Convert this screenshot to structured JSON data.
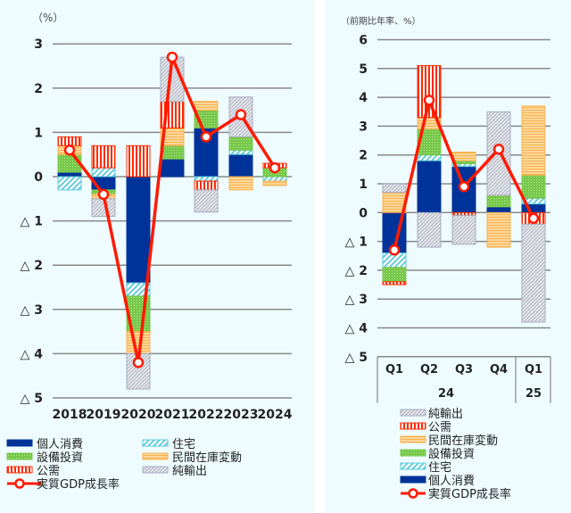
{
  "colors": {
    "個人消費": "#003399",
    "住宅": "#5bc8d8",
    "設備投資": "#77c84a",
    "民間在庫変動": "#f7b24e",
    "公需": "#ff2a00",
    "純輸出": "#b8bcc8",
    "実質GDP成長率": "#ff1a00",
    "background": "#effcff",
    "grid": "#888888"
  },
  "chart_data": [
    {
      "type": "bar",
      "stacked": true,
      "yunit_label": "（%）",
      "ylim": [
        -5,
        3
      ],
      "ytick_values": [
        3,
        2,
        1,
        0,
        -1,
        -2,
        -3,
        -4,
        -5
      ],
      "ytick_labels": [
        "3",
        "2",
        "1",
        "0",
        "△ 1",
        "△ 2",
        "△ 3",
        "△ 4",
        "△ 5"
      ],
      "grid": true,
      "categories": [
        "2018",
        "2019",
        "2020",
        "2021",
        "2022",
        "2023",
        "2024"
      ],
      "series": [
        {
          "name": "個人消費",
          "values": [
            0.1,
            -0.3,
            -2.4,
            0.4,
            1.1,
            0.5,
            0.0
          ]
        },
        {
          "name": "住宅",
          "values": [
            -0.3,
            0.2,
            -0.3,
            0.0,
            -0.1,
            0.1,
            -0.1
          ]
        },
        {
          "name": "設備投資",
          "values": [
            0.4,
            -0.1,
            -0.8,
            0.3,
            0.4,
            0.3,
            0.2
          ]
        },
        {
          "name": "民間在庫変動",
          "values": [
            0.2,
            -0.1,
            -0.5,
            0.4,
            0.2,
            -0.3,
            -0.1
          ]
        },
        {
          "name": "公需",
          "values": [
            0.2,
            0.5,
            0.7,
            0.6,
            -0.2,
            0.0,
            0.1
          ]
        },
        {
          "name": "純輸出",
          "values": [
            0.0,
            -0.4,
            -0.8,
            1.0,
            -0.5,
            0.9,
            0.0
          ]
        }
      ],
      "line": {
        "name": "実質GDP成長率",
        "values": [
          0.6,
          -0.4,
          -4.2,
          2.7,
          0.9,
          1.4,
          0.2
        ]
      },
      "legend": {
        "placement": "bottom",
        "items": [
          "個人消費",
          "住宅",
          "設備投資",
          "民間在庫変動",
          "公需",
          "純輸出",
          "実質GDP成長率"
        ]
      }
    },
    {
      "type": "bar",
      "stacked": true,
      "yunit_label": "（前期比年率、%）",
      "ylim": [
        -5,
        6
      ],
      "ytick_values": [
        6,
        5,
        4,
        3,
        2,
        1,
        0,
        -1,
        -2,
        -3,
        -4,
        -5
      ],
      "ytick_labels": [
        "6",
        "5",
        "4",
        "3",
        "2",
        "1",
        "0",
        "△ 1",
        "△ 2",
        "△ 3",
        "△ 4",
        "△ 5"
      ],
      "grid": true,
      "categories": [
        "Q1",
        "Q2",
        "Q3",
        "Q4",
        "Q1"
      ],
      "category_groups": [
        {
          "label": "24",
          "span": 4
        },
        {
          "label": "25",
          "span": 1
        }
      ],
      "series": [
        {
          "name": "個人消費",
          "values": [
            -1.4,
            1.8,
            1.6,
            0.2,
            0.3
          ]
        },
        {
          "name": "住宅",
          "values": [
            -0.5,
            0.2,
            0.1,
            0.0,
            0.2
          ]
        },
        {
          "name": "設備投資",
          "values": [
            -0.5,
            0.9,
            0.1,
            0.4,
            0.8
          ]
        },
        {
          "name": "民間在庫変動",
          "values": [
            0.7,
            0.4,
            0.3,
            -1.2,
            2.4
          ]
        },
        {
          "name": "公需",
          "values": [
            -0.1,
            1.8,
            -0.1,
            0.0,
            -0.4
          ]
        },
        {
          "name": "純輸出",
          "values": [
            0.3,
            -1.2,
            -1.0,
            2.9,
            -3.4
          ]
        }
      ],
      "line": {
        "name": "実質GDP成長率",
        "values": [
          -1.3,
          3.9,
          0.9,
          2.2,
          -0.2
        ]
      },
      "legend": {
        "placement": "bottom",
        "items": [
          "純輸出",
          "公需",
          "民間在庫変動",
          "設備投資",
          "住宅",
          "個人消費",
          "実質GDP成長率"
        ]
      }
    }
  ]
}
